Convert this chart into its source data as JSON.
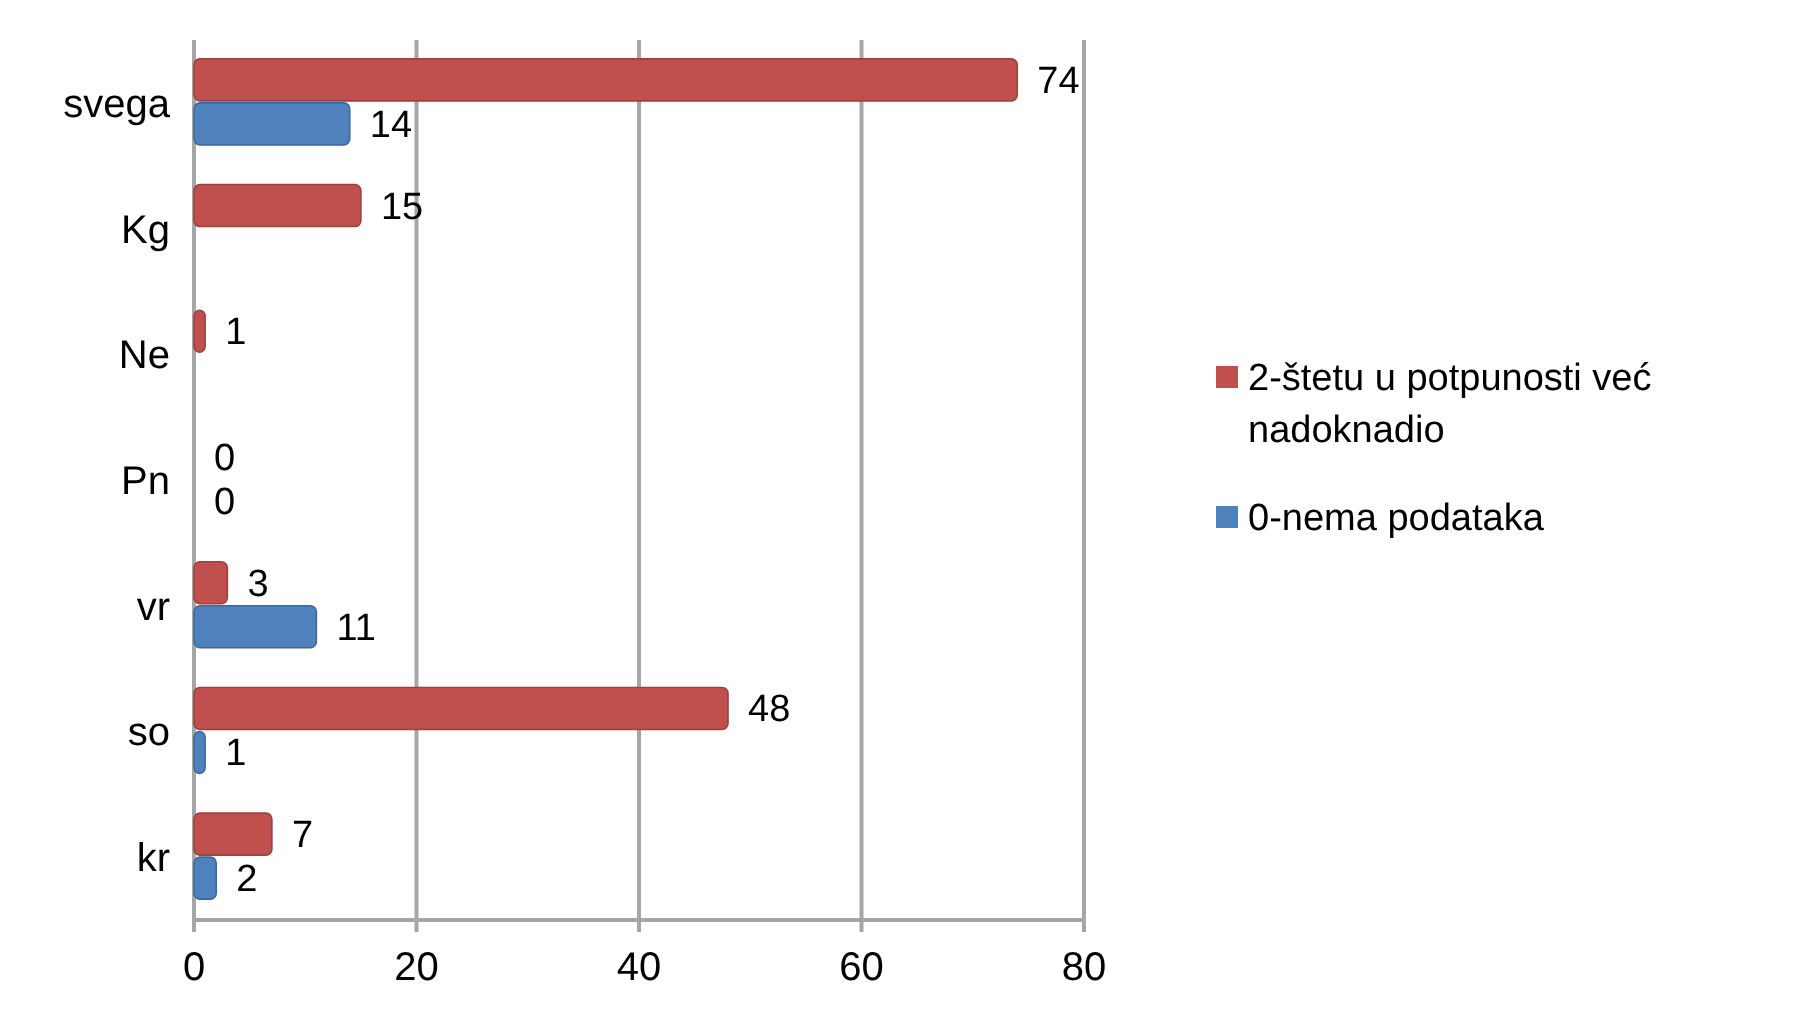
{
  "chart_data": {
    "type": "bar",
    "orientation": "horizontal",
    "categories": [
      "svega",
      "Kg",
      "Ne",
      "Pn",
      "vr",
      "so",
      "kr"
    ],
    "series": [
      {
        "name": "2-štetu u potpunosti već nadoknadio",
        "color": "#c0504d",
        "values": [
          74,
          15,
          1,
          0,
          3,
          48,
          7
        ]
      },
      {
        "name": "0-nema podataka",
        "color": "#4f81bd",
        "values": [
          14,
          null,
          null,
          0,
          11,
          1,
          2
        ]
      }
    ],
    "xlim": [
      0,
      80
    ],
    "xticks": [
      0,
      20,
      40,
      60,
      80
    ],
    "grid": "x",
    "legend": "right",
    "data_labels": true
  }
}
